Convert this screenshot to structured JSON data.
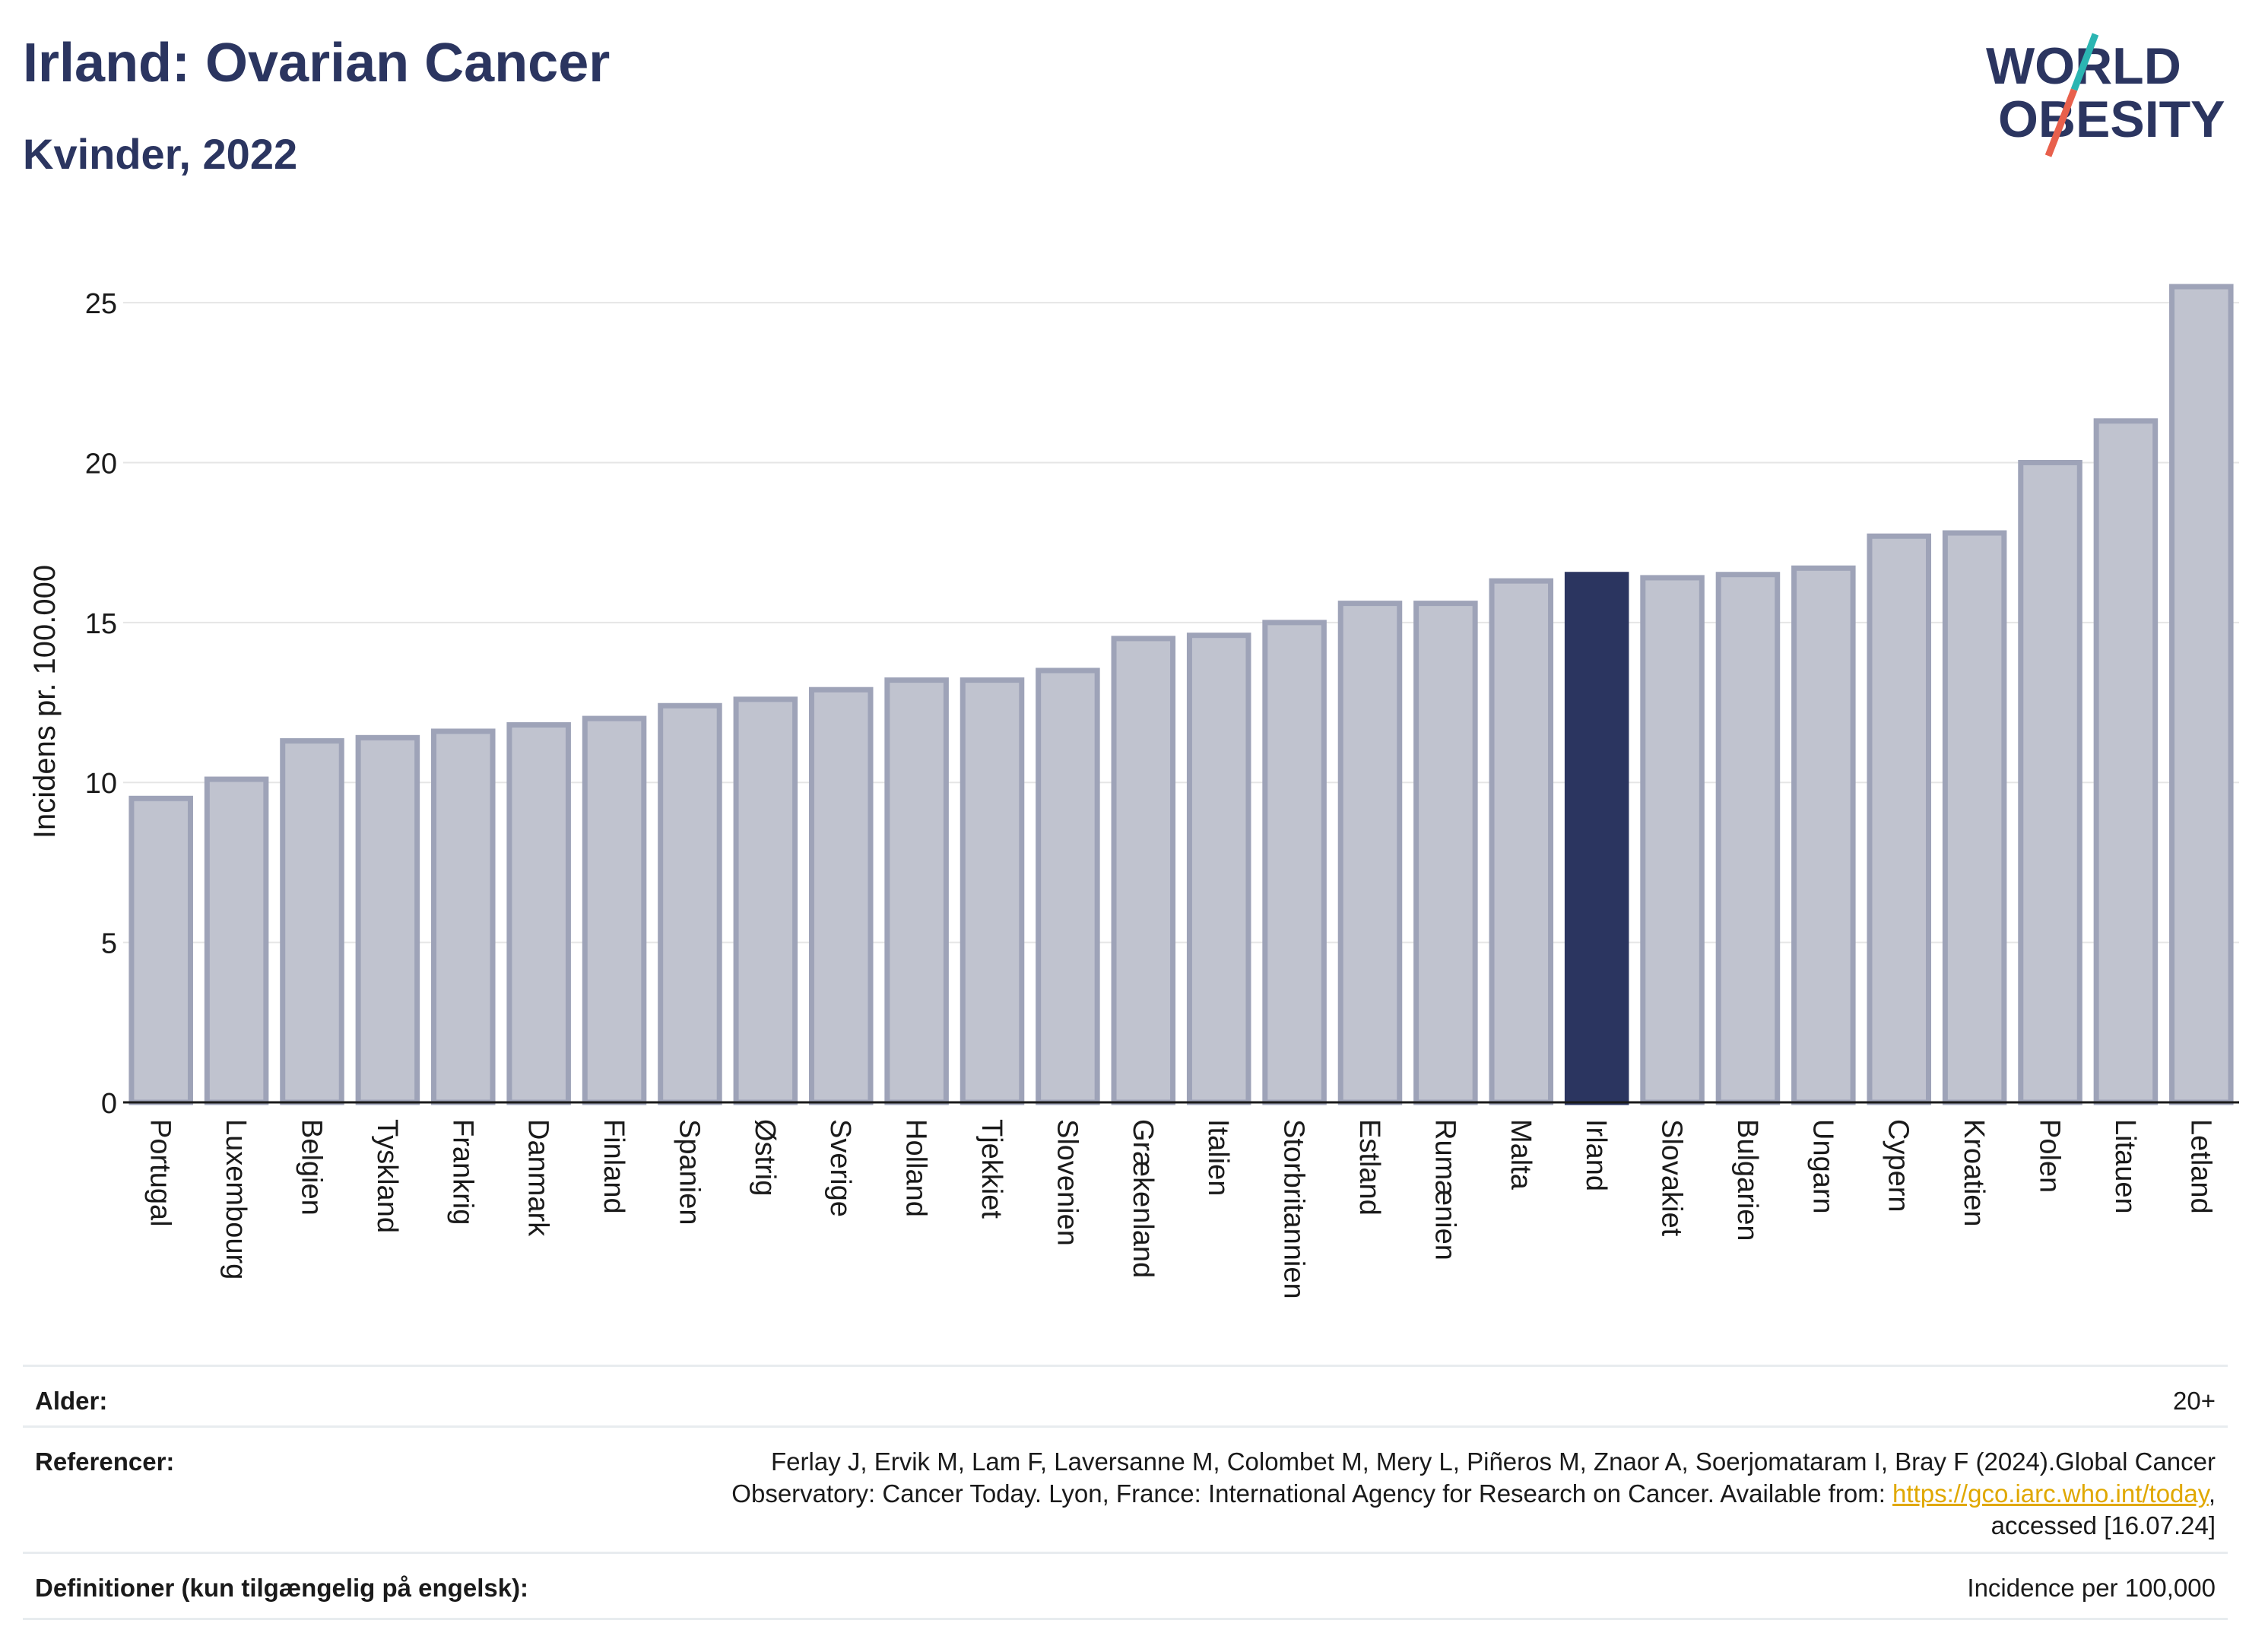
{
  "header": {
    "title": "Irland: Ovarian Cancer",
    "subtitle": "Kvinder, 2022"
  },
  "logo": {
    "line1": "WORLD",
    "line2": "OBESITY"
  },
  "colors": {
    "highlight": "#2b3560",
    "bar_fill": "#c0c3cf",
    "bar_stroke": "#9ea3b8",
    "grid": "#e6e6e6",
    "logo_text": "#2b3560",
    "logo_teal": "#2bb5b2",
    "logo_red": "#e8604c"
  },
  "chart_data": {
    "type": "bar",
    "ylabel": "Incidens pr. 100.000",
    "xlabel": "",
    "ylim": [
      0,
      26
    ],
    "yticks": [
      0,
      5,
      10,
      15,
      20,
      25
    ],
    "grid": true,
    "highlight": "Irland",
    "categories": [
      "Portugal",
      "Luxembourg",
      "Belgien",
      "Tyskland",
      "Frankrig",
      "Danmark",
      "Finland",
      "Spanien",
      "Østrig",
      "Sverige",
      "Holland",
      "Tjekkiet",
      "Slovenien",
      "Grækenland",
      "Italien",
      "Storbritannien",
      "Estland",
      "Rumænien",
      "Malta",
      "Irland",
      "Slovakiet",
      "Bulgarien",
      "Ungarn",
      "Cypern",
      "Kroatien",
      "Polen",
      "Litauen",
      "Letland"
    ],
    "values": [
      9.5,
      10.1,
      11.3,
      11.4,
      11.6,
      11.8,
      12.0,
      12.4,
      12.6,
      12.9,
      13.2,
      13.2,
      13.5,
      14.5,
      14.6,
      15.0,
      15.6,
      15.6,
      16.3,
      16.5,
      16.4,
      16.5,
      16.7,
      17.7,
      17.8,
      20.0,
      21.3,
      25.5
    ]
  },
  "info": {
    "age_label": "Alder:",
    "age_value": "20+",
    "ref_label": "Referencer:",
    "ref_line1": "Ferlay J, Ervik M, Lam F, Laversanne M, Colombet M, Mery L, Piñeros M, Znaor A, Soerjomataram I, Bray F (2024).Global Cancer",
    "ref_line2_text": "Observatory: Cancer Today. Lyon, France: International Agency for Research on Cancer. Available from: ",
    "ref_link": "https://gco.iarc.who.int/today",
    "ref_line2_end": ",",
    "ref_line3": "accessed [16.07.24]",
    "def_label": "Definitioner (kun tilgængelig på engelsk):",
    "def_value": "Incidence per 100,000"
  }
}
